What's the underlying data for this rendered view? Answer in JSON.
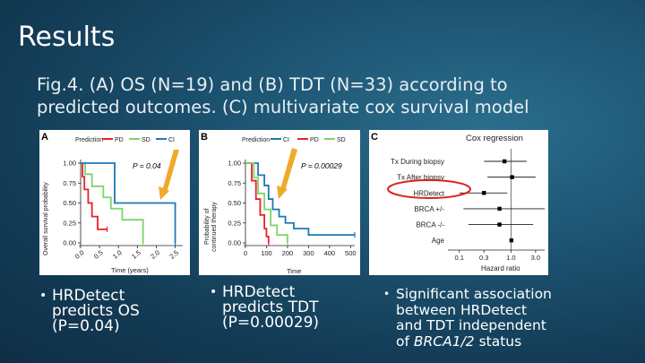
{
  "slide": {
    "title": "Results",
    "subtitle_line1": "Fig.4. (A) OS (N=19) and (B) TDT (N=33) according to",
    "subtitle_line2": "predicted outcomes. (C) multivariate cox survival model"
  },
  "panels": {
    "a": {
      "letter": "A",
      "legend_title": "Prediction",
      "legend": [
        {
          "name": "PD",
          "color": "#e8202a"
        },
        {
          "name": "SD",
          "color": "#7fd36a"
        },
        {
          "name": "CI",
          "color": "#1f77b4"
        }
      ],
      "p_value": "P = 0.04",
      "ylabel": "Overall survival probability",
      "xlabel": "Time (years)",
      "yticks": [
        "1.00",
        "0.75",
        "0.50",
        "0.25",
        "0.00"
      ],
      "xticks": [
        "0.0",
        "0.5",
        "1.0",
        "1.5",
        "2.0",
        "2.5"
      ]
    },
    "b": {
      "letter": "B",
      "legend_title": "Prediction",
      "legend": [
        {
          "name": "CI",
          "color": "#1f77b4"
        },
        {
          "name": "PD",
          "color": "#e8202a"
        },
        {
          "name": "SD",
          "color": "#7fd36a"
        }
      ],
      "p_value": "P = 0.00029",
      "ylabel_line1": "Probability of",
      "ylabel_line2": "continued therapy",
      "xlabel": "Time",
      "yticks": [
        "1.00",
        "0.75",
        "0.50",
        "0.25",
        "0.00"
      ],
      "xticks": [
        "0",
        "100",
        "200",
        "300",
        "400",
        "500"
      ]
    },
    "c": {
      "letter": "C",
      "title": "Cox regression",
      "xlabel": "Hazard ratio",
      "xticks": [
        "0.1",
        "0.3",
        "1.0",
        "3.0"
      ],
      "variables": [
        "Tx During biopsy",
        "Tx After biopsy",
        "HRDetect",
        "BRCA +/-",
        "BRCA -/-",
        "Age"
      ]
    }
  },
  "chart_data": [
    {
      "type": "line",
      "panel": "A",
      "xlabel": "Time (years)",
      "ylabel": "Overall survival probability",
      "xlim": [
        0,
        2.7
      ],
      "ylim": [
        0,
        1
      ],
      "series": [
        {
          "name": "PD",
          "color": "#e8202a",
          "x": [
            0,
            0.05,
            0.1,
            0.2,
            0.3,
            0.45,
            0.7
          ],
          "y": [
            1.0,
            0.83,
            0.67,
            0.5,
            0.33,
            0.17,
            0.17
          ]
        },
        {
          "name": "SD",
          "color": "#7fd36a",
          "x": [
            0,
            0.12,
            0.3,
            0.6,
            0.8,
            1.1,
            1.65
          ],
          "y": [
            1.0,
            0.86,
            0.71,
            0.57,
            0.43,
            0.29,
            0.0
          ]
        },
        {
          "name": "CI",
          "color": "#1f77b4",
          "x": [
            0,
            0.75,
            0.9,
            2.2,
            2.5
          ],
          "y": [
            1.0,
            1.0,
            0.5,
            0.5,
            0.0
          ]
        }
      ]
    },
    {
      "type": "line",
      "panel": "B",
      "xlabel": "Time",
      "ylabel": "Probability of continued therapy",
      "xlim": [
        0,
        520
      ],
      "ylim": [
        0,
        1
      ],
      "series": [
        {
          "name": "CI",
          "color": "#1f77b4",
          "x": [
            0,
            60,
            90,
            110,
            130,
            160,
            190,
            230,
            300,
            400,
            520
          ],
          "y": [
            1.0,
            0.85,
            0.72,
            0.55,
            0.42,
            0.33,
            0.25,
            0.18,
            0.1,
            0.1,
            0.1
          ]
        },
        {
          "name": "PD",
          "color": "#e8202a",
          "x": [
            0,
            30,
            50,
            70,
            90,
            100,
            110
          ],
          "y": [
            1.0,
            0.78,
            0.55,
            0.35,
            0.18,
            0.08,
            0.0
          ]
        },
        {
          "name": "SD",
          "color": "#7fd36a",
          "x": [
            0,
            40,
            60,
            90,
            120,
            150,
            200
          ],
          "y": [
            1.0,
            0.82,
            0.62,
            0.42,
            0.22,
            0.1,
            0.0
          ]
        }
      ]
    },
    {
      "type": "scatter",
      "panel": "C",
      "title": "Cox regression",
      "xlabel": "Hazard ratio",
      "xscale": "log",
      "xlim": [
        0.06,
        4.5
      ],
      "categories": [
        "Tx During biopsy",
        "Tx After biopsy",
        "HRDetect",
        "BRCA +/-",
        "BRCA -/-",
        "Age"
      ],
      "hr": [
        0.75,
        1.05,
        0.3,
        0.6,
        0.6,
        1.02
      ],
      "ci_low": [
        0.3,
        0.35,
        0.1,
        0.12,
        0.15,
        0.98
      ],
      "ci_high": [
        2.0,
        3.0,
        0.85,
        4.5,
        2.7,
        1.06
      ],
      "highlight": "HRDetect"
    }
  ],
  "bullets": [
    {
      "lines": [
        "HRDetect",
        "predicts OS",
        "(P=0.04)"
      ]
    },
    {
      "lines": [
        "HRDetect",
        "predicts TDT",
        "(P=0.00029)"
      ]
    },
    {
      "lines": [
        "Significant association",
        "between HRDetect",
        "and TDT independent"
      ],
      "last_prefix": "of ",
      "last_italic": "BRCA1/2",
      "last_suffix": " status"
    }
  ]
}
